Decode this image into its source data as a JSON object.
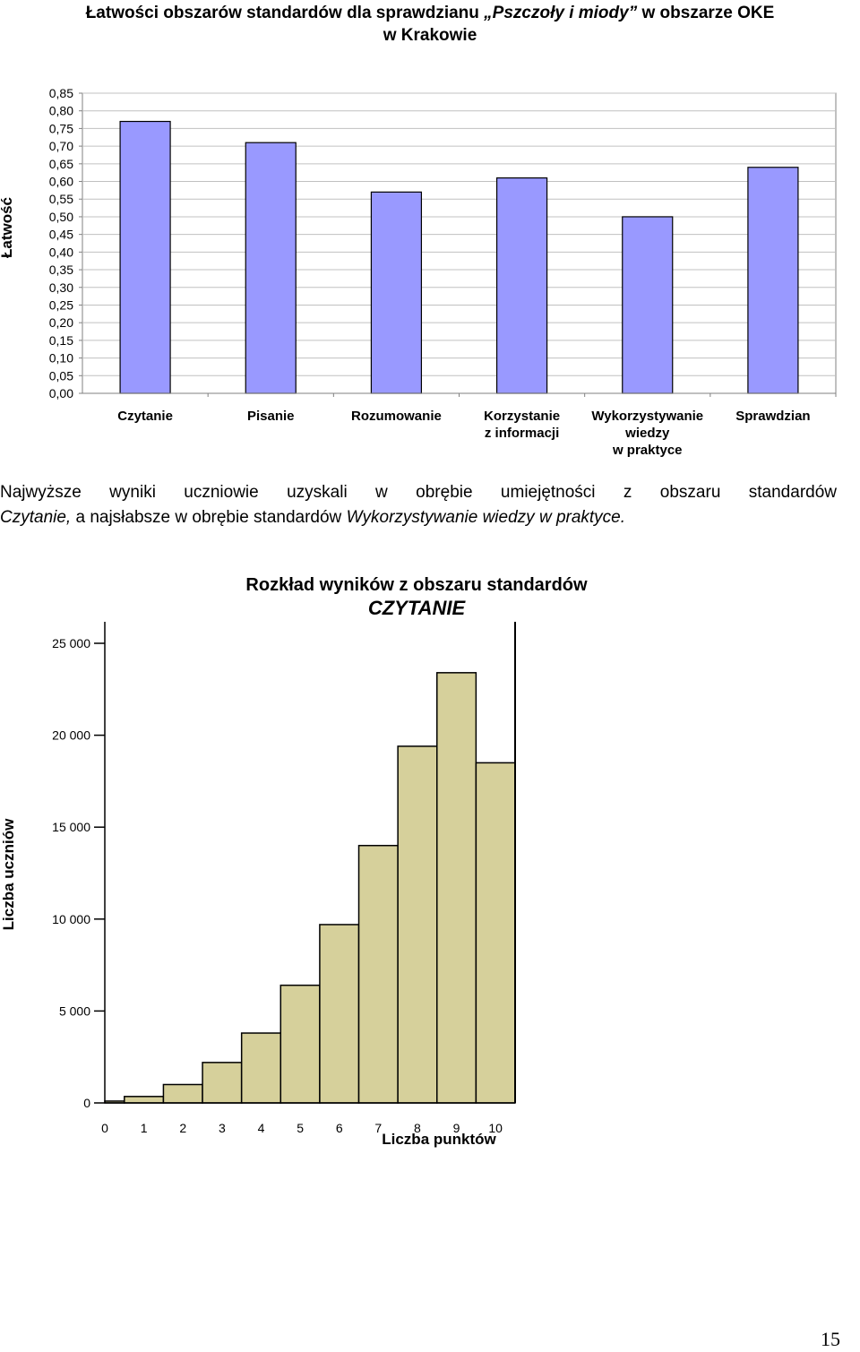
{
  "chart1": {
    "title_part1": "Łatwości obszarów standardów dla sprawdzianu ",
    "title_italic": "„Pszczoły i miody”",
    "title_part2": " w obszarze OKE",
    "title_line2": "w Krakowie",
    "ylabel": "Łatwość"
  },
  "paragraph": {
    "line1": "Najwyższe wyniki uczniowie uzyskali w obrębie umiejętności z obszaru standardów",
    "line2_italic_a": "Czytanie,",
    "line2_mid": " a najsłabsze w obrębie standardów ",
    "line2_italic_b": "Wykorzystywanie wiedzy w praktyce."
  },
  "chart2": {
    "title": "Rozkład wyników z obszaru standardów",
    "subtitle": "CZYTANIE",
    "ylabel": "Liczba uczniów",
    "xlabel": "Liczba punktów"
  },
  "page_number": "15",
  "colors": {
    "bar1": "#9999ff",
    "bar2": "#d6d09b",
    "plot_bg1": "#ffffff"
  },
  "chart_data": [
    {
      "type": "bar",
      "title": "Łatwości obszarów standardów dla sprawdzianu „Pszczoły i miody” w obszarze OKE w Krakowie",
      "ylabel": "Łatwość",
      "xlabel": "",
      "categories": [
        [
          "Czytanie"
        ],
        [
          "Pisanie"
        ],
        [
          "Rozumowanie"
        ],
        [
          "Korzystanie",
          "z informacji"
        ],
        [
          "Wykorzystywanie",
          "wiedzy",
          "w praktyce"
        ],
        [
          "Sprawdzian"
        ]
      ],
      "values": [
        0.77,
        0.71,
        0.57,
        0.61,
        0.5,
        0.64
      ],
      "ylim": [
        0,
        0.85
      ],
      "yticks": [
        "0,00",
        "0,05",
        "0,10",
        "0,15",
        "0,20",
        "0,25",
        "0,30",
        "0,35",
        "0,40",
        "0,45",
        "0,50",
        "0,55",
        "0,60",
        "0,65",
        "0,70",
        "0,75",
        "0,80",
        "0,85"
      ],
      "grid": true
    },
    {
      "type": "bar",
      "title": "Rozkład wyników z obszaru standardów CZYTANIE",
      "xlabel": "Liczba punktów",
      "ylabel": "Liczba uczniów",
      "categories": [
        "0",
        "1",
        "2",
        "3",
        "4",
        "5",
        "6",
        "7",
        "8",
        "9",
        "10"
      ],
      "values": [
        100,
        350,
        1000,
        2200,
        3800,
        6400,
        9700,
        14000,
        19400,
        23400,
        18500
      ],
      "ylim": [
        0,
        25000
      ],
      "yticks": [
        "0",
        "5 000",
        "10 000",
        "15 000",
        "20 000",
        "25 000"
      ],
      "grid": false
    }
  ]
}
